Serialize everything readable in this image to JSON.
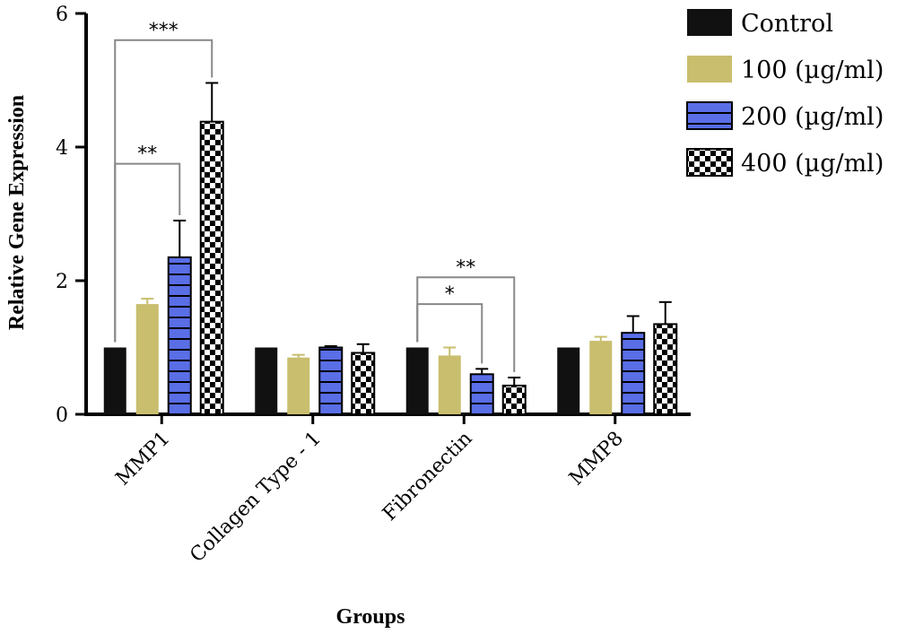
{
  "chart_data": {
    "type": "bar",
    "ylabel": "Relative Gene Expression",
    "xlabel": "Groups",
    "ylim": [
      0,
      6
    ],
    "yticks": [
      "0",
      "2",
      "4",
      "6"
    ],
    "categories": [
      "MMP1",
      "Collagen Type - 1",
      "Fibronectin",
      "MMP8"
    ],
    "series": [
      {
        "name": "Control",
        "color": "#111111",
        "pattern": "solid",
        "values": [
          1.0,
          1.0,
          1.0,
          1.0
        ],
        "errors": [
          0,
          0,
          0,
          0
        ]
      },
      {
        "name": "100 (µg/ml)",
        "color": "#c8be6e",
        "pattern": "solid",
        "values": [
          1.65,
          0.85,
          0.88,
          1.1
        ],
        "errors": [
          0.08,
          0.04,
          0.12,
          0.06
        ]
      },
      {
        "name": "200 (µg/ml)",
        "color": "#5a6ee6",
        "pattern": "horizontal-stripes",
        "values": [
          2.35,
          1.0,
          0.6,
          1.22
        ],
        "errors": [
          0.55,
          0.02,
          0.08,
          0.25
        ]
      },
      {
        "name": "400 (µg/ml)",
        "color": "#000000",
        "pattern": "checkerboard",
        "values": [
          4.38,
          0.92,
          0.43,
          1.35
        ],
        "errors": [
          0.58,
          0.13,
          0.12,
          0.33
        ]
      }
    ],
    "significance": [
      {
        "category": "MMP1",
        "from_series": 0,
        "to_series": 3,
        "label": "***",
        "y": 5.6
      },
      {
        "category": "MMP1",
        "from_series": 0,
        "to_series": 2,
        "label": "**",
        "y": 3.75
      },
      {
        "category": "Fibronectin",
        "from_series": 0,
        "to_series": 3,
        "label": "**",
        "y": 2.05
      },
      {
        "category": "Fibronectin",
        "from_series": 0,
        "to_series": 2,
        "label": "*",
        "y": 1.65
      }
    ],
    "legend_position": "top-right",
    "grid": false
  }
}
